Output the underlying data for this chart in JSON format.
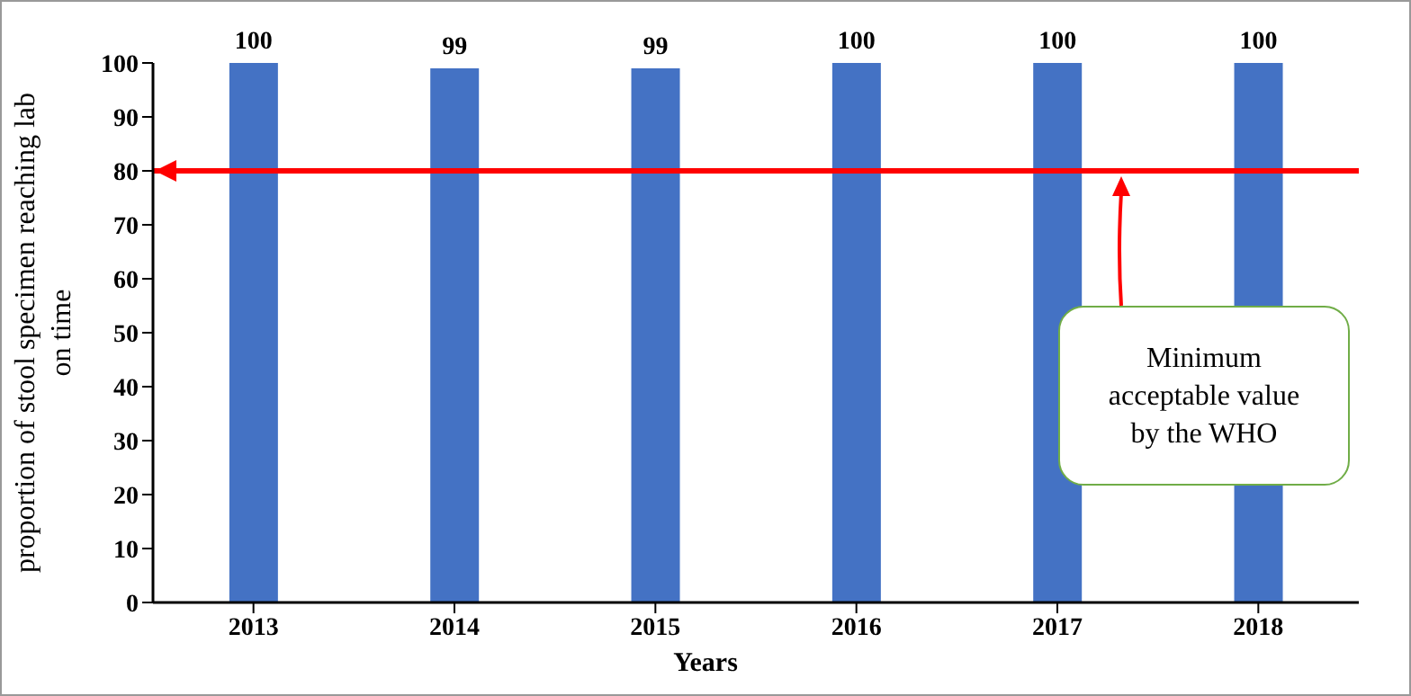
{
  "chart_data": {
    "type": "bar",
    "xlabel": "Years",
    "ylabel": "proportion of stool specimen reaching lab on time",
    "categories": [
      "2013",
      "2014",
      "2015",
      "2016",
      "2017",
      "2018"
    ],
    "values": [
      100,
      99,
      99,
      100,
      100,
      100
    ],
    "color": "#4472c4",
    "data_labels": true,
    "ylim": [
      0,
      100
    ],
    "yticks": [
      0,
      10,
      20,
      30,
      40,
      50,
      60,
      70,
      80,
      90,
      100
    ],
    "grid": false,
    "legend": false,
    "ref_lines": [
      {
        "axis": "y",
        "value": 80,
        "color": "#ff0000"
      }
    ],
    "annotations": [
      "Minimum acceptable value by the WHO"
    ]
  }
}
